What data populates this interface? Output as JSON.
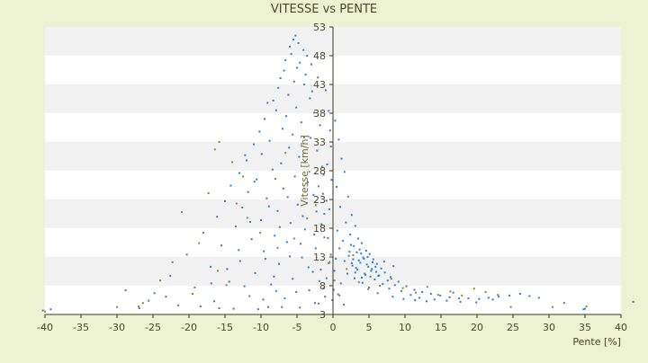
{
  "chart_data": {
    "type": "scatter",
    "title": "VITESSE vs PENTE",
    "xlabel": "Pente [%]",
    "ylabel": "Vitesse [km/h]",
    "xlim": [
      -40,
      40
    ],
    "ylim": [
      3,
      53
    ],
    "x_ticks": [
      "-40",
      "-35",
      "-30",
      "-25",
      "-20",
      "-15",
      "-10",
      "-5",
      "0",
      "5",
      "10",
      "15",
      "20",
      "25",
      "30",
      "35",
      "40"
    ],
    "y_ticks": [
      "3",
      "8",
      "13",
      "18",
      "23",
      "28",
      "33",
      "38",
      "43",
      "48",
      "53"
    ],
    "grid": "horizontal bands",
    "legend": "none",
    "colors": {
      "background": "#ecf2d2",
      "plot_area": "#ffffff",
      "band": "#f2f2f2",
      "axis": "#3a3a1e",
      "text": "#4a4a2a",
      "series_primary": "#2e7fd6",
      "series_secondary": "#8a8a2e"
    },
    "series": [
      {
        "color": "#2e7fd6",
        "points": [
          [
            -5.2,
            51.5
          ],
          [
            -5.5,
            50.8
          ],
          [
            -4.8,
            50.2
          ],
          [
            -6.0,
            49.6
          ],
          [
            -4.1,
            49.0
          ],
          [
            -5.8,
            48.3
          ],
          [
            -3.6,
            48.0
          ],
          [
            -6.6,
            47.2
          ],
          [
            -4.6,
            46.8
          ],
          [
            -5.0,
            45.9
          ],
          [
            -6.8,
            45.4
          ],
          [
            -3.8,
            44.7
          ],
          [
            -7.3,
            44.1
          ],
          [
            -5.4,
            43.5
          ],
          [
            -4.0,
            43.0
          ],
          [
            -7.6,
            42.4
          ],
          [
            -2.9,
            41.8
          ],
          [
            -6.2,
            41.2
          ],
          [
            -3.2,
            40.6
          ],
          [
            -8.3,
            40.2
          ],
          [
            -9.1,
            39.8
          ],
          [
            -5.1,
            39.0
          ],
          [
            -7.9,
            38.5
          ],
          [
            -2.6,
            38.1
          ],
          [
            -6.5,
            37.5
          ],
          [
            -9.5,
            37.0
          ],
          [
            -4.4,
            36.4
          ],
          [
            -1.8,
            35.9
          ],
          [
            -7.0,
            35.3
          ],
          [
            -10.2,
            34.8
          ],
          [
            -5.6,
            34.3
          ],
          [
            -3.1,
            33.7
          ],
          [
            -8.8,
            33.2
          ],
          [
            -11.0,
            32.6
          ],
          [
            -6.1,
            32.0
          ],
          [
            -2.2,
            31.5
          ],
          [
            -9.9,
            30.9
          ],
          [
            -4.7,
            30.4
          ],
          [
            -12.0,
            29.8
          ],
          [
            -7.2,
            29.3
          ],
          [
            -1.5,
            28.7
          ],
          [
            -8.4,
            28.2
          ],
          [
            -13.0,
            27.6
          ],
          [
            -5.3,
            27.0
          ],
          [
            -10.6,
            26.5
          ],
          [
            -3.5,
            26.0
          ],
          [
            -14.2,
            25.4
          ],
          [
            -6.9,
            24.9
          ],
          [
            -11.8,
            24.3
          ],
          [
            -2.7,
            23.8
          ],
          [
            -9.2,
            23.2
          ],
          [
            -15.0,
            22.7
          ],
          [
            -4.9,
            22.1
          ],
          [
            -12.6,
            21.6
          ],
          [
            -7.7,
            21.0
          ],
          [
            -1.2,
            20.5
          ],
          [
            -16.1,
            20.0
          ],
          [
            -10.0,
            19.4
          ],
          [
            -5.9,
            18.9
          ],
          [
            -13.5,
            18.3
          ],
          [
            -3.9,
            17.8
          ],
          [
            -18.0,
            17.2
          ],
          [
            -8.1,
            16.7
          ],
          [
            -11.3,
            16.1
          ],
          [
            -6.4,
            15.6
          ],
          [
            -15.5,
            15.0
          ],
          [
            -2.4,
            14.5
          ],
          [
            -9.6,
            14.0
          ],
          [
            -20.3,
            13.4
          ],
          [
            -4.3,
            12.9
          ],
          [
            -12.9,
            12.3
          ],
          [
            -7.5,
            11.8
          ],
          [
            -17.0,
            11.3
          ],
          [
            -1.7,
            10.8
          ],
          [
            -10.8,
            10.2
          ],
          [
            -22.6,
            9.7
          ],
          [
            -5.6,
            9.2
          ],
          [
            -14.4,
            8.7
          ],
          [
            -8.6,
            8.2
          ],
          [
            -19.2,
            7.7
          ],
          [
            -3.3,
            7.2
          ],
          [
            -24.8,
            6.7
          ],
          [
            -11.6,
            6.2
          ],
          [
            -6.7,
            5.8
          ],
          [
            -16.5,
            5.3
          ],
          [
            -2.0,
            4.9
          ],
          [
            -21.5,
            4.6
          ],
          [
            -9.0,
            4.3
          ],
          [
            -13.8,
            4.0
          ],
          [
            -26.9,
            4.1
          ],
          [
            -4.6,
            4.2
          ],
          [
            -18.4,
            4.4
          ],
          [
            -28.8,
            7.2
          ],
          [
            -23.2,
            6.1
          ],
          [
            -25.6,
            5.4
          ],
          [
            -39.2,
            3.9
          ],
          [
            -40.3,
            3.7
          ],
          [
            -15.8,
            4.1
          ],
          [
            -10.4,
            3.9
          ],
          [
            -7.1,
            4.3
          ],
          [
            -3.0,
            46.5
          ],
          [
            -2.1,
            44.2
          ],
          [
            -1.0,
            42.0
          ],
          [
            -0.6,
            38.4
          ],
          [
            -0.4,
            35.0
          ],
          [
            -0.3,
            32.2
          ],
          [
            -0.8,
            29.1
          ],
          [
            -0.2,
            26.4
          ],
          [
            -1.4,
            24.0
          ],
          [
            -0.5,
            21.3
          ],
          [
            0.3,
            36.7
          ],
          [
            0.8,
            33.4
          ],
          [
            1.2,
            30.1
          ],
          [
            1.6,
            27.8
          ],
          [
            0.5,
            25.2
          ],
          [
            2.1,
            23.5
          ],
          [
            1.0,
            21.7
          ],
          [
            2.6,
            20.3
          ],
          [
            1.8,
            19.0
          ],
          [
            3.1,
            18.4
          ],
          [
            0.6,
            17.6
          ],
          [
            2.4,
            16.9
          ],
          [
            3.5,
            16.2
          ],
          [
            1.4,
            15.8
          ],
          [
            4.0,
            15.4
          ],
          [
            2.9,
            14.9
          ],
          [
            0.9,
            14.5
          ],
          [
            4.6,
            14.1
          ],
          [
            3.3,
            13.8
          ],
          [
            5.1,
            13.5
          ],
          [
            2.2,
            13.2
          ],
          [
            4.2,
            12.9
          ],
          [
            5.6,
            12.6
          ],
          [
            1.6,
            12.3
          ],
          [
            3.8,
            12.0
          ],
          [
            6.1,
            11.8
          ],
          [
            2.7,
            11.5
          ],
          [
            4.9,
            11.3
          ],
          [
            6.7,
            11.0
          ],
          [
            3.4,
            10.8
          ],
          [
            5.3,
            10.6
          ],
          [
            7.2,
            10.3
          ],
          [
            2.0,
            10.1
          ],
          [
            4.5,
            9.9
          ],
          [
            6.3,
            9.7
          ],
          [
            8.0,
            9.5
          ],
          [
            3.0,
            9.3
          ],
          [
            5.8,
            9.1
          ],
          [
            7.6,
            8.9
          ],
          [
            9.1,
            8.7
          ],
          [
            4.1,
            8.5
          ],
          [
            6.9,
            8.3
          ],
          [
            8.6,
            8.1
          ],
          [
            10.2,
            7.9
          ],
          [
            5.0,
            7.7
          ],
          [
            7.8,
            7.5
          ],
          [
            11.3,
            7.3
          ],
          [
            9.5,
            7.1
          ],
          [
            12.4,
            6.9
          ],
          [
            6.2,
            6.7
          ],
          [
            13.6,
            6.6
          ],
          [
            10.8,
            6.4
          ],
          [
            14.9,
            6.3
          ],
          [
            8.3,
            6.1
          ],
          [
            16.2,
            6.0
          ],
          [
            12.0,
            5.9
          ],
          [
            17.5,
            5.8
          ],
          [
            9.8,
            5.7
          ],
          [
            18.8,
            5.8
          ],
          [
            14.1,
            5.6
          ],
          [
            20.3,
            5.7
          ],
          [
            11.4,
            5.5
          ],
          [
            21.6,
            5.9
          ],
          [
            15.8,
            5.4
          ],
          [
            23.0,
            6.1
          ],
          [
            13.0,
            5.3
          ],
          [
            24.5,
            6.3
          ],
          [
            26.0,
            6.6
          ],
          [
            27.3,
            6.2
          ],
          [
            17.7,
            5.2
          ],
          [
            28.6,
            5.9
          ],
          [
            19.9,
            5.1
          ],
          [
            32.1,
            5.0
          ],
          [
            34.8,
            3.9
          ],
          [
            35.0,
            4.0
          ],
          [
            41.7,
            5.2
          ],
          [
            22.2,
            5.6
          ],
          [
            16.7,
            6.8
          ],
          [
            7.1,
            12.2
          ],
          [
            8.4,
            11.4
          ],
          [
            3.7,
            14.3
          ],
          [
            4.8,
            13.0
          ],
          [
            5.5,
            12.1
          ],
          [
            2.5,
            15.1
          ],
          [
            6.0,
            10.4
          ],
          [
            3.2,
            11.1
          ],
          [
            4.4,
            10.1
          ],
          [
            5.2,
            9.6
          ],
          [
            2.8,
            12.6
          ],
          [
            3.9,
            13.6
          ],
          [
            4.7,
            11.7
          ],
          [
            3.6,
            12.4
          ],
          [
            5.9,
            11.3
          ],
          [
            2.3,
            13.9
          ],
          [
            4.3,
            12.7
          ],
          [
            5.4,
            10.9
          ],
          [
            3.1,
            10.3
          ],
          [
            6.4,
            9.8
          ],
          [
            4.0,
            9.4
          ],
          [
            2.6,
            11.9
          ],
          [
            -0.3,
            13.4
          ],
          [
            0.4,
            12.7
          ],
          [
            -0.6,
            11.9
          ],
          [
            0.2,
            10.6
          ],
          [
            -0.9,
            9.3
          ],
          [
            1.1,
            8.4
          ],
          [
            -1.3,
            7.6
          ],
          [
            0.7,
            6.5
          ],
          [
            -0.1,
            5.5
          ],
          [
            1.5,
            4.7
          ],
          [
            -2.5,
            5.0
          ],
          [
            -1.1,
            6.1
          ],
          [
            0.1,
            7.3
          ],
          [
            -1.9,
            8.8
          ],
          [
            -2.8,
            10.4
          ],
          [
            -0.7,
            16.3
          ],
          [
            -1.6,
            18.7
          ],
          [
            -2.3,
            20.9
          ],
          [
            -0.9,
            22.8
          ],
          [
            -1.3,
            27.3
          ],
          [
            -8.9,
            21.8
          ],
          [
            -11.5,
            19.1
          ],
          [
            -13.1,
            14.2
          ],
          [
            -14.7,
            10.9
          ],
          [
            -16.9,
            8.4
          ],
          [
            -9.4,
            12.7
          ],
          [
            -7.4,
            18.2
          ],
          [
            -6.3,
            23.4
          ],
          [
            -10.9,
            26.1
          ],
          [
            -12.2,
            30.7
          ],
          [
            -6.0,
            13.1
          ],
          [
            -4.5,
            15.3
          ],
          [
            -8.2,
            9.6
          ],
          [
            -5.1,
            6.9
          ],
          [
            -3.4,
            11.2
          ],
          [
            -7.9,
            7.1
          ],
          [
            -9.7,
            5.6
          ],
          [
            -12.3,
            7.9
          ],
          [
            -2.6,
            16.9
          ],
          [
            -4.2,
            20.1
          ]
        ]
      },
      {
        "color": "#8a8a2e",
        "points": [
          [
            -15.8,
            33.0
          ],
          [
            -16.4,
            31.7
          ],
          [
            -14.0,
            29.5
          ],
          [
            -12.5,
            27.0
          ],
          [
            -17.3,
            24.1
          ],
          [
            -13.4,
            22.3
          ],
          [
            -21.0,
            20.8
          ],
          [
            -11.9,
            19.8
          ],
          [
            -18.6,
            15.4
          ],
          [
            -22.3,
            12.1
          ],
          [
            -16.0,
            10.6
          ],
          [
            -24.0,
            8.9
          ],
          [
            -19.5,
            6.6
          ],
          [
            -26.4,
            5.0
          ],
          [
            -27.0,
            4.4
          ],
          [
            -14.8,
            8.1
          ],
          [
            -10.1,
            17.2
          ],
          [
            -8.0,
            26.6
          ],
          [
            -6.6,
            31.1
          ],
          [
            -4.0,
            33.8
          ],
          [
            -3.3,
            27.8
          ],
          [
            -2.4,
            22.0
          ],
          [
            -1.2,
            16.4
          ],
          [
            -0.5,
            12.1
          ],
          [
            0.2,
            8.9
          ],
          [
            0.9,
            6.3
          ],
          [
            1.9,
            10.9
          ],
          [
            2.8,
            13.3
          ],
          [
            3.6,
            8.6
          ],
          [
            4.9,
            7.4
          ],
          [
            6.5,
            8.0
          ],
          [
            8.1,
            9.2
          ],
          [
            9.7,
            7.6
          ],
          [
            11.5,
            6.8
          ],
          [
            13.1,
            7.8
          ],
          [
            14.6,
            6.4
          ],
          [
            16.3,
            7.0
          ],
          [
            17.9,
            6.3
          ],
          [
            19.6,
            7.5
          ],
          [
            21.2,
            6.9
          ],
          [
            22.9,
            6.4
          ],
          [
            24.7,
            4.3
          ],
          [
            30.5,
            4.3
          ],
          [
            35.2,
            4.4
          ],
          [
            -40.0,
            3.5
          ],
          [
            -30.0,
            4.3
          ],
          [
            -7.7,
            14.6
          ],
          [
            -5.4,
            16.2
          ],
          [
            -3.6,
            19.7
          ],
          [
            -2.0,
            25.3
          ]
        ]
      }
    ]
  }
}
